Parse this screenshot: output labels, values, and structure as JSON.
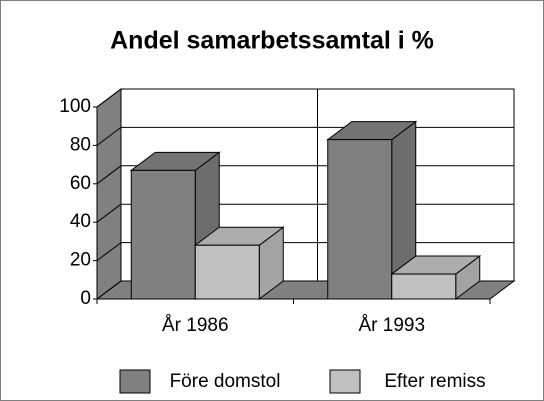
{
  "chart_data": {
    "type": "bar3d",
    "title": "Andel samarbetssamtal i %",
    "categories": [
      "År 1986",
      "År 1993"
    ],
    "series": [
      {
        "name": "Före domstol",
        "color": "#808080",
        "values": [
          67,
          83
        ]
      },
      {
        "name": "Efter remiss",
        "color": "#c0c0c0",
        "values": [
          28,
          13
        ]
      }
    ],
    "ylim": [
      0,
      100
    ],
    "yticks": [
      0,
      20,
      40,
      60,
      80,
      100
    ],
    "grid": true
  }
}
